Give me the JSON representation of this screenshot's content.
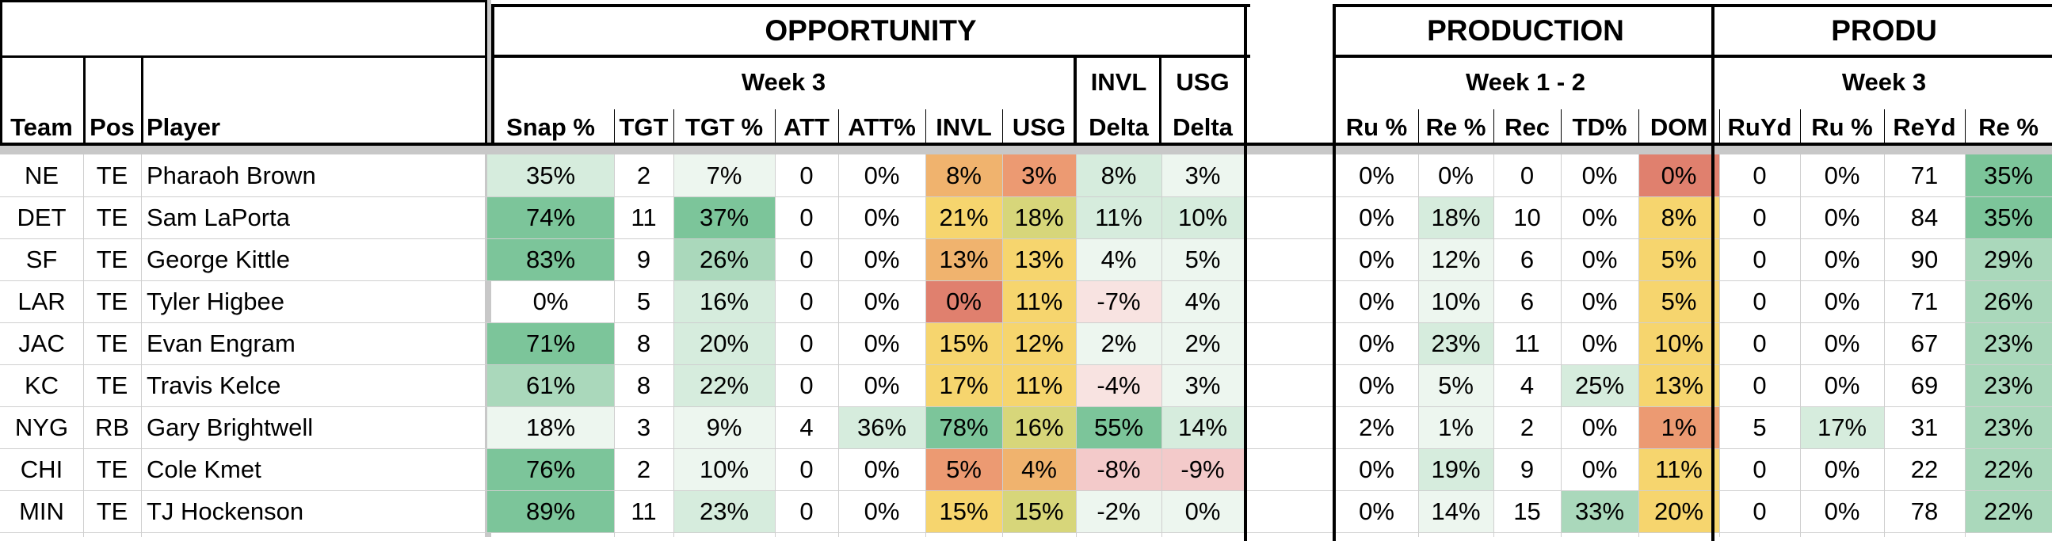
{
  "colors": {
    "green_strong": "#7cc59a",
    "green_mid": "#aad8bb",
    "green_light": "#d6ecdd",
    "green_faint": "#edf6ef",
    "yellow": "#f6d56e",
    "yellow_green": "#d7d67a",
    "orange": "#f0b36e",
    "orange_red": "#ec9a72",
    "red": "#e0806e",
    "pink_light": "#f8e3e1",
    "pink_mid": "#f3caca",
    "separator_gray": "#c8c8c8"
  },
  "section_headers": {
    "opportunity": "OPPORTUNITY",
    "production_1": "PRODUCTION",
    "production_2": "PRODU"
  },
  "group_headers": {
    "week3_opportunity": "Week 3",
    "invl": "INVL",
    "usg": "USG",
    "week12": "Week 1 - 2",
    "week3_production": "Week 3"
  },
  "columns": [
    "Team",
    "Pos",
    "Player",
    "Snap %",
    "TGT",
    "TGT %",
    "ATT",
    "ATT%",
    "INVL",
    "USG",
    "Delta",
    "Delta",
    "Ru %",
    "Re %",
    "Rec",
    "TD%",
    "DOM",
    "RuYd",
    "Ru %",
    "ReYd",
    "Re %"
  ],
  "rows": [
    {
      "cells": [
        "NE",
        "TE",
        "Pharaoh Brown",
        "35%",
        "2",
        "7%",
        "0",
        "0%",
        "8%",
        "3%",
        "8%",
        "3%",
        "0%",
        "0%",
        "0",
        "0%",
        "0%",
        "0",
        "0%",
        "71",
        "35%"
      ],
      "colors": {
        "3": "green_light",
        "5": "green_faint",
        "8": "orange",
        "9": "orange_red",
        "10": "green_light",
        "11": "green_faint",
        "16": "red",
        "20": "green_strong"
      }
    },
    {
      "cells": [
        "DET",
        "TE",
        "Sam LaPorta",
        "74%",
        "11",
        "37%",
        "0",
        "0%",
        "21%",
        "18%",
        "11%",
        "10%",
        "0%",
        "18%",
        "10",
        "0%",
        "8%",
        "0",
        "0%",
        "84",
        "35%"
      ],
      "colors": {
        "3": "green_strong",
        "5": "green_strong",
        "8": "yellow",
        "9": "yellow_green",
        "10": "green_light",
        "11": "green_light",
        "13": "green_light",
        "16": "yellow",
        "20": "green_strong"
      }
    },
    {
      "cells": [
        "SF",
        "TE",
        "George Kittle",
        "83%",
        "9",
        "26%",
        "0",
        "0%",
        "13%",
        "13%",
        "4%",
        "5%",
        "0%",
        "12%",
        "6",
        "0%",
        "5%",
        "0",
        "0%",
        "90",
        "29%"
      ],
      "colors": {
        "3": "green_strong",
        "5": "green_mid",
        "8": "orange",
        "9": "yellow",
        "10": "green_faint",
        "11": "green_faint",
        "13": "green_faint",
        "16": "yellow",
        "20": "green_mid"
      }
    },
    {
      "cells": [
        "LAR",
        "TE",
        "Tyler Higbee",
        "0%",
        "5",
        "16%",
        "0",
        "0%",
        "0%",
        "11%",
        "-7%",
        "4%",
        "0%",
        "10%",
        "6",
        "0%",
        "5%",
        "0",
        "0%",
        "71",
        "26%"
      ],
      "colors": {
        "5": "green_light",
        "8": "red",
        "9": "yellow",
        "10": "pink_light",
        "11": "green_faint",
        "13": "green_faint",
        "16": "yellow",
        "20": "green_mid"
      }
    },
    {
      "cells": [
        "JAC",
        "TE",
        "Evan Engram",
        "71%",
        "8",
        "20%",
        "0",
        "0%",
        "15%",
        "12%",
        "2%",
        "2%",
        "0%",
        "23%",
        "11",
        "0%",
        "10%",
        "0",
        "0%",
        "67",
        "23%"
      ],
      "colors": {
        "3": "green_strong",
        "5": "green_light",
        "8": "yellow",
        "9": "yellow",
        "10": "green_faint",
        "11": "green_faint",
        "13": "green_light",
        "16": "yellow",
        "20": "green_mid"
      }
    },
    {
      "cells": [
        "KC",
        "TE",
        "Travis Kelce",
        "61%",
        "8",
        "22%",
        "0",
        "0%",
        "17%",
        "11%",
        "-4%",
        "3%",
        "0%",
        "5%",
        "4",
        "25%",
        "13%",
        "0",
        "0%",
        "69",
        "23%"
      ],
      "colors": {
        "3": "green_mid",
        "5": "green_light",
        "8": "yellow",
        "9": "yellow",
        "10": "pink_light",
        "11": "green_faint",
        "13": "green_faint",
        "15": "green_light",
        "16": "yellow",
        "20": "green_mid"
      }
    },
    {
      "cells": [
        "NYG",
        "RB",
        "Gary Brightwell",
        "18%",
        "3",
        "9%",
        "4",
        "36%",
        "78%",
        "16%",
        "55%",
        "14%",
        "2%",
        "1%",
        "2",
        "0%",
        "1%",
        "5",
        "17%",
        "31",
        "23%"
      ],
      "colors": {
        "3": "green_faint",
        "5": "green_faint",
        "7": "green_light",
        "8": "green_strong",
        "9": "yellow_green",
        "10": "green_strong",
        "11": "green_light",
        "13": "green_faint",
        "16": "orange_red",
        "18": "green_light",
        "20": "green_mid"
      }
    },
    {
      "cells": [
        "CHI",
        "TE",
        "Cole Kmet",
        "76%",
        "2",
        "10%",
        "0",
        "0%",
        "5%",
        "4%",
        "-8%",
        "-9%",
        "0%",
        "19%",
        "9",
        "0%",
        "11%",
        "0",
        "0%",
        "22",
        "22%"
      ],
      "colors": {
        "3": "green_strong",
        "5": "green_faint",
        "8": "orange_red",
        "9": "orange",
        "10": "pink_mid",
        "11": "pink_mid",
        "13": "green_light",
        "16": "yellow",
        "20": "green_mid"
      }
    },
    {
      "cells": [
        "MIN",
        "TE",
        "TJ Hockenson",
        "89%",
        "11",
        "23%",
        "0",
        "0%",
        "15%",
        "15%",
        "-2%",
        "0%",
        "0%",
        "14%",
        "15",
        "33%",
        "20%",
        "0",
        "0%",
        "78",
        "22%"
      ],
      "colors": {
        "3": "green_strong",
        "5": "green_light",
        "8": "yellow",
        "9": "yellow_green",
        "10": "green_faint",
        "11": "green_faint",
        "13": "green_faint",
        "15": "green_mid",
        "16": "yellow",
        "20": "green_mid"
      }
    }
  ]
}
